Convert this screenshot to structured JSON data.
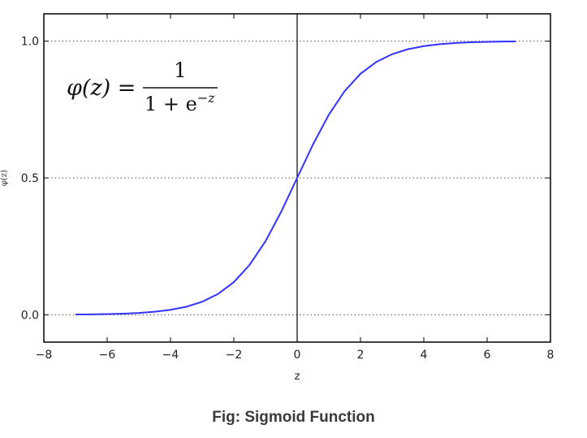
{
  "caption": "Fig: Sigmoid Function",
  "formula": {
    "lhs": "φ(z) =",
    "numerator": "1",
    "denominator_base": "1 + e",
    "denominator_exp": "−z"
  },
  "chart_data": {
    "type": "line",
    "title": "",
    "xlabel": "z",
    "ylabel": "φ(z)",
    "xlim": [
      -8,
      8
    ],
    "ylim": [
      -0.1,
      1.1
    ],
    "xticks": [
      -8,
      -6,
      -4,
      -2,
      0,
      2,
      4,
      6,
      8
    ],
    "xtick_labels": [
      "−8",
      "−6",
      "−4",
      "−2",
      "0",
      "2",
      "4",
      "6",
      "8"
    ],
    "yticks": [
      0.0,
      0.5,
      1.0
    ],
    "ytick_labels": [
      "0.0",
      "0.5",
      "1.0"
    ],
    "grid": "horizontal dotted at y ticks",
    "vertical_line_x": 0,
    "series": [
      {
        "color": "#3333ff",
        "x": [
          -7,
          -6.5,
          -6,
          -5.5,
          -5,
          -4.5,
          -4,
          -3.5,
          -3,
          -2.5,
          -2,
          -1.5,
          -1,
          -0.5,
          0,
          0.5,
          1,
          1.5,
          2,
          2.5,
          3,
          3.5,
          4,
          4.5,
          5,
          5.5,
          6,
          6.5,
          6.9
        ],
        "y": [
          0.0009,
          0.0015,
          0.0025,
          0.0041,
          0.0067,
          0.011,
          0.018,
          0.0293,
          0.0474,
          0.0759,
          0.1192,
          0.1824,
          0.2689,
          0.3775,
          0.5,
          0.6225,
          0.7311,
          0.8176,
          0.8808,
          0.9241,
          0.9526,
          0.9707,
          0.982,
          0.989,
          0.9933,
          0.9959,
          0.9975,
          0.9985,
          0.999
        ]
      }
    ]
  }
}
